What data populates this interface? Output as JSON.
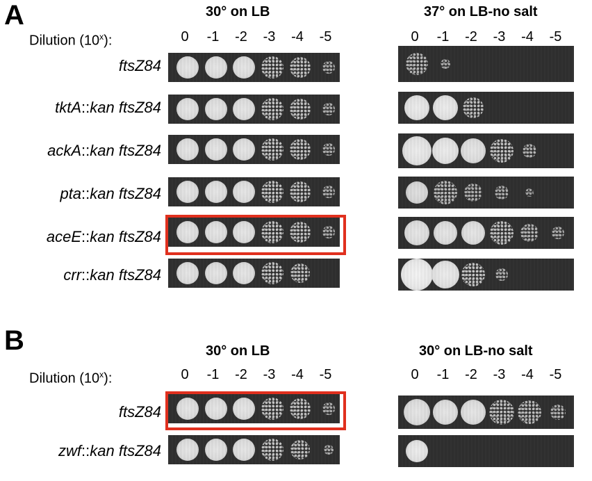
{
  "panelA": {
    "letter": "A",
    "left_title": "30° on LB",
    "right_title": "37° on LB-no salt",
    "dilution_label": "Dilution (10",
    "dilution_sup": "x",
    "dilution_suffix": "):",
    "dilutions_left": [
      "0",
      "-1",
      "-2",
      "-3",
      "-4",
      "-5"
    ],
    "dilutions_right": [
      "0",
      "-1",
      "-2",
      "-3",
      "-4",
      "-5"
    ],
    "strains": [
      {
        "gene": "",
        "sep": "",
        "rest": "ftsZ84"
      },
      {
        "gene": "tktA",
        "sep": "::",
        "rest": "kan ftsZ84"
      },
      {
        "gene": "ackA",
        "sep": "::",
        "rest": "kan ftsZ84"
      },
      {
        "gene": "pta",
        "sep": "::",
        "rest": "kan ftsZ84"
      },
      {
        "gene": "aceE",
        "sep": "::",
        "rest": "kan ftsZ84"
      },
      {
        "gene": "crr",
        "sep": "::",
        "rest": "kan ftsZ84"
      }
    ]
  },
  "panelB": {
    "letter": "B",
    "left_title": "30° on LB",
    "right_title": "30° on LB-no salt",
    "dilution_label": "Dilution (10",
    "dilution_sup": "x",
    "dilution_suffix": "):",
    "dilutions_left": [
      "0",
      "-1",
      "-2",
      "-3",
      "-4",
      "-5"
    ],
    "dilutions_right": [
      "0",
      "-1",
      "-2",
      "-3",
      "-4",
      "-5"
    ],
    "strains": [
      {
        "gene": "",
        "sep": "",
        "rest": "ftsZ84"
      },
      {
        "gene": "zwf",
        "sep": "::",
        "rest": "kan ftsZ84"
      }
    ]
  },
  "highlight_color": "#e0301e"
}
